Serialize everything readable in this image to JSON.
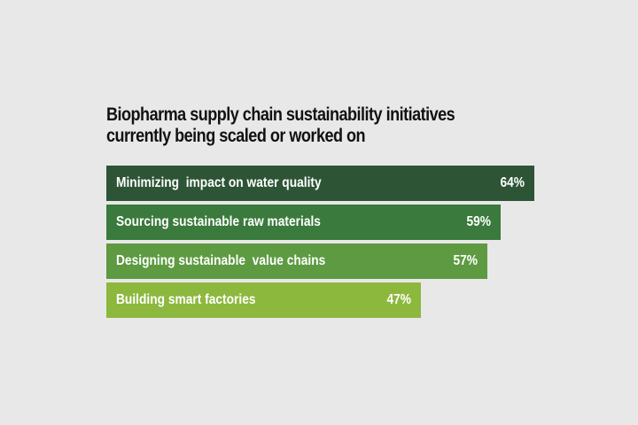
{
  "chart_data": {
    "type": "bar",
    "orientation": "horizontal",
    "title": "Biopharma supply chain sustainability initiatives currently being scaled or worked on",
    "title_lines": [
      "Biopharma supply chain sustainability initiatives",
      "currently being scaled or worked on"
    ],
    "categories": [
      "Minimizing  impact on water quality",
      "Sourcing sustainable raw materials",
      "Designing sustainable  value chains",
      "Building smart factories"
    ],
    "values": [
      64,
      59,
      57,
      47
    ],
    "value_labels": [
      "64%",
      "59%",
      "57%",
      "47%"
    ],
    "colors": [
      "#2d5535",
      "#3a7a3c",
      "#5d9a41",
      "#8db83e"
    ],
    "xlabel": "",
    "ylabel": "",
    "xlim": [
      0,
      64
    ],
    "grid": false
  }
}
